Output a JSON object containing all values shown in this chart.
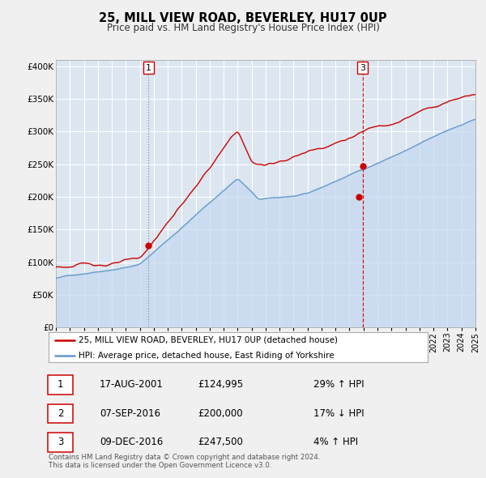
{
  "title": "25, MILL VIEW ROAD, BEVERLEY, HU17 0UP",
  "subtitle": "Price paid vs. HM Land Registry's House Price Index (HPI)",
  "hpi_color": "#6699cc",
  "hpi_fill_color": "#c5d8f0",
  "price_color": "#cc0000",
  "marker_color": "#cc0000",
  "background_color": "#f0f0f0",
  "grid_color": "#ffffff",
  "plot_bg": "#dce6f0",
  "ylim": [
    0,
    410000
  ],
  "yticks": [
    0,
    50000,
    100000,
    150000,
    200000,
    250000,
    300000,
    350000,
    400000
  ],
  "ytick_labels": [
    "£0",
    "£50K",
    "£100K",
    "£150K",
    "£200K",
    "£250K",
    "£300K",
    "£350K",
    "£400K"
  ],
  "legend_label_price": "25, MILL VIEW ROAD, BEVERLEY, HU17 0UP (detached house)",
  "legend_label_hpi": "HPI: Average price, detached house, East Riding of Yorkshire",
  "transactions": [
    {
      "num": 1,
      "date_str": "17-AUG-2001",
      "price": 124995,
      "pct": "29%",
      "dir": "↑",
      "year": 2001.62
    },
    {
      "num": 2,
      "date_str": "07-SEP-2016",
      "price": 200000,
      "pct": "17%",
      "dir": "↓",
      "year": 2016.68
    },
    {
      "num": 3,
      "date_str": "09-DEC-2016",
      "price": 247500,
      "pct": "4%",
      "dir": "↑",
      "year": 2016.93
    }
  ],
  "vline_nums": [
    1,
    3
  ],
  "vline_years": [
    2001.62,
    2016.93
  ],
  "footer": "Contains HM Land Registry data © Crown copyright and database right 2024.\nThis data is licensed under the Open Government Licence v3.0.",
  "xmin": 1995,
  "xmax": 2025
}
